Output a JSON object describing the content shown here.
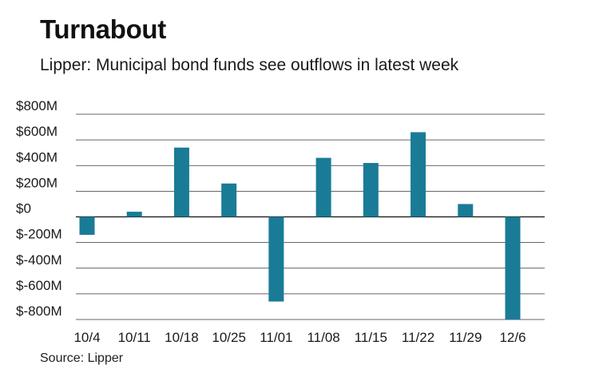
{
  "chart_data": {
    "type": "bar",
    "title": "Turnabout",
    "subtitle": "Lipper: Municipal bond funds see outflows in latest week",
    "source": "Source: Lipper",
    "xlabel": "",
    "ylabel": "",
    "categories": [
      "10/4",
      "10/11",
      "10/18",
      "10/25",
      "11/01",
      "11/08",
      "11/15",
      "11/22",
      "11/29",
      "12/6"
    ],
    "values": [
      -140,
      40,
      540,
      260,
      -660,
      460,
      420,
      660,
      100,
      -820
    ],
    "unit": "USD millions",
    "ylim": [
      -800,
      800
    ],
    "yticks": [
      800,
      600,
      400,
      200,
      0,
      -200,
      -400,
      -600,
      -800
    ],
    "ytick_labels": [
      "$800M",
      "$600M",
      "$400M",
      "$200M",
      "$0",
      "$-200M",
      "$-400M",
      "$-600M",
      "$-800M"
    ],
    "grid": true,
    "legend": "none",
    "colors": {
      "bar": "#1a7b97",
      "grid": "#333333",
      "text": "#1a1a1a"
    }
  }
}
